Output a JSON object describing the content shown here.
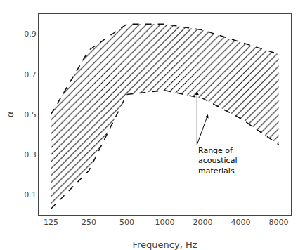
{
  "chart_data": {
    "type": "band",
    "x": [
      125,
      250,
      500,
      1000,
      2000,
      4000,
      8000
    ],
    "series": [
      {
        "values": [
          0.5,
          0.82,
          0.95,
          0.95,
          0.92,
          0.86,
          0.8
        ],
        "color": "#111111",
        "line_style": "dashed"
      },
      {
        "values": [
          0.03,
          0.22,
          0.6,
          0.62,
          0.58,
          0.48,
          0.35
        ],
        "color": "#111111",
        "line_style": "dashed"
      }
    ],
    "xlabel": "Frequency, Hz",
    "ylabel": "α",
    "log": "x",
    "xlim": [
      100,
      10000
    ],
    "ylim": [
      0,
      1.0
    ],
    "xticks": [
      125,
      250,
      500,
      1000,
      2000,
      4000,
      8000
    ],
    "yticks": [
      0.1,
      0.3,
      0.5,
      0.7,
      0.9
    ],
    "grid": false,
    "annotations": [
      {
        "text": "Range of\nacoustical\nmaterials",
        "x": 1800,
        "y": 0.35,
        "arrows": [
          [
            1800,
            0.615
          ],
          [
            2200,
            0.5
          ]
        ]
      }
    ]
  }
}
